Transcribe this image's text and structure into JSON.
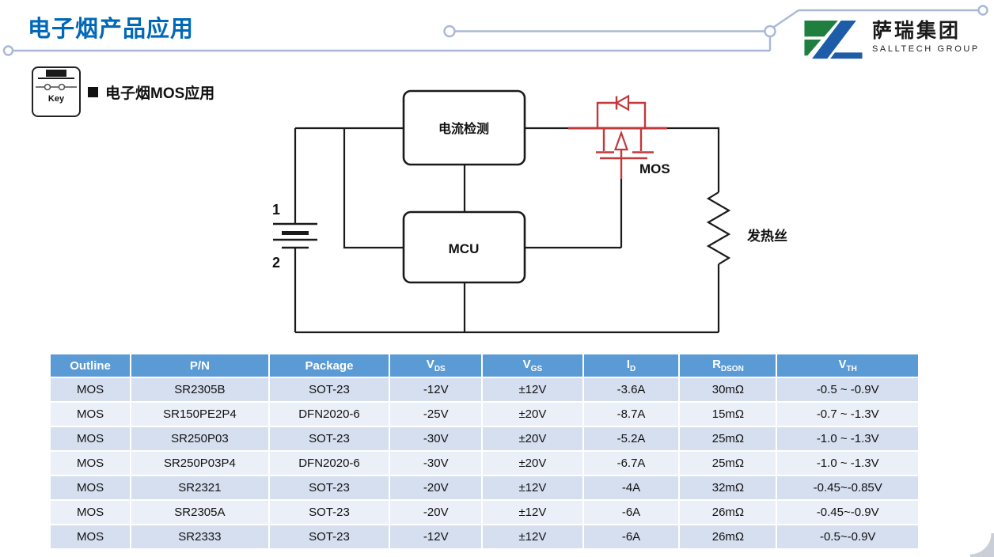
{
  "page": {
    "title": "电子烟产品应用",
    "section_heading": "电子烟MOS应用",
    "key_label": "Key"
  },
  "logo": {
    "name_cn": "萨瑞集团",
    "name_en": "SALLTECH GROUP",
    "green": "#1E7F3F",
    "blue": "#1C5CA8"
  },
  "colors": {
    "accent_blue": "#0068B7",
    "deco_line": "#A9B8D6",
    "mos_red": "#C03A3C"
  },
  "diagram": {
    "blocks": {
      "current_sense": "电流检测",
      "mcu": "MCU"
    },
    "labels": {
      "mos": "MOS",
      "heater": "发热丝",
      "battery_pin1": "1",
      "battery_pin2": "2"
    }
  },
  "table": {
    "header_bg": "#5B9BD5",
    "row_bg_odd": "#D6DFF0",
    "row_bg_even": "#EBEFF8",
    "columns": [
      {
        "label": "Outline",
        "sub": ""
      },
      {
        "label": "P/N",
        "sub": ""
      },
      {
        "label": "Package",
        "sub": ""
      },
      {
        "label": "V",
        "sub": "DS"
      },
      {
        "label": "V",
        "sub": "GS"
      },
      {
        "label": "I",
        "sub": "D"
      },
      {
        "label": "R",
        "sub": "DSON"
      },
      {
        "label": "V",
        "sub": "TH"
      }
    ],
    "rows": [
      [
        "MOS",
        "SR2305B",
        "SOT-23",
        "-12V",
        "±12V",
        "-3.6A",
        "30mΩ",
        "-0.5 ~ -0.9V"
      ],
      [
        "MOS",
        "SR150PE2P4",
        "DFN2020-6",
        "-25V",
        "±20V",
        "-8.7A",
        "15mΩ",
        "-0.7 ~ -1.3V"
      ],
      [
        "MOS",
        "SR250P03",
        "SOT-23",
        "-30V",
        "±20V",
        "-5.2A",
        "25mΩ",
        "-1.0 ~ -1.3V"
      ],
      [
        "MOS",
        "SR250P03P4",
        "DFN2020-6",
        "-30V",
        "±20V",
        "-6.7A",
        "25mΩ",
        "-1.0 ~ -1.3V"
      ],
      [
        "MOS",
        "SR2321",
        "SOT-23",
        "-20V",
        "±12V",
        "-4A",
        "32mΩ",
        "-0.45~-0.85V"
      ],
      [
        "MOS",
        "SR2305A",
        "SOT-23",
        "-20V",
        "±12V",
        "-6A",
        "26mΩ",
        "-0.45~-0.9V"
      ],
      [
        "MOS",
        "SR2333",
        "SOT-23",
        "-12V",
        "±12V",
        "-6A",
        "26mΩ",
        "-0.5~-0.9V"
      ]
    ]
  }
}
